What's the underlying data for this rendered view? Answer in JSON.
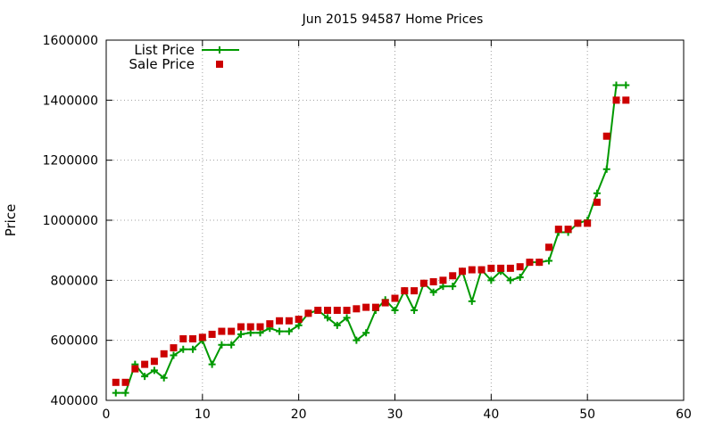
{
  "chart_data": {
    "type": "line",
    "title": "Jun 2015 94587 Home Prices",
    "xlabel": "",
    "ylabel": "Price",
    "xlim": [
      0,
      60
    ],
    "ylim": [
      400000,
      1600000
    ],
    "x_ticks": [
      0,
      10,
      20,
      30,
      40,
      50,
      60
    ],
    "y_ticks": [
      400000,
      600000,
      800000,
      1000000,
      1200000,
      1400000,
      1600000
    ],
    "grid": true,
    "legend_position": "top-left",
    "series": [
      {
        "name": "List Price",
        "style": "line-with-plus-markers",
        "color": "#009900",
        "x": [
          1,
          2,
          3,
          4,
          5,
          6,
          7,
          8,
          9,
          10,
          11,
          12,
          13,
          14,
          15,
          16,
          17,
          18,
          19,
          20,
          21,
          22,
          23,
          24,
          25,
          26,
          27,
          28,
          29,
          30,
          31,
          32,
          33,
          34,
          35,
          36,
          37,
          38,
          39,
          40,
          41,
          42,
          43,
          44,
          45,
          46,
          47,
          48,
          49,
          50,
          51,
          52,
          53,
          54
        ],
        "values": [
          425000,
          425000,
          520000,
          480000,
          500000,
          475000,
          550000,
          570000,
          570000,
          600000,
          520000,
          585000,
          585000,
          620000,
          625000,
          625000,
          640000,
          630000,
          630000,
          650000,
          690000,
          700000,
          675000,
          650000,
          675000,
          600000,
          625000,
          700000,
          735000,
          700000,
          765000,
          700000,
          790000,
          760000,
          780000,
          780000,
          830000,
          730000,
          835000,
          800000,
          830000,
          800000,
          810000,
          860000,
          860000,
          865000,
          960000,
          960000,
          990000,
          1000000,
          1090000,
          1170000,
          1450000,
          1450000
        ]
      },
      {
        "name": "Sale Price",
        "style": "square-markers",
        "color": "#cc0000",
        "x": [
          1,
          2,
          3,
          4,
          5,
          6,
          7,
          8,
          9,
          10,
          11,
          12,
          13,
          14,
          15,
          16,
          17,
          18,
          19,
          20,
          21,
          22,
          23,
          24,
          25,
          26,
          27,
          28,
          29,
          30,
          31,
          32,
          33,
          34,
          35,
          36,
          37,
          38,
          39,
          40,
          41,
          42,
          43,
          44,
          45,
          46,
          47,
          48,
          49,
          50,
          51,
          52,
          53,
          54
        ],
        "values": [
          460000,
          460000,
          505000,
          520000,
          530000,
          555000,
          575000,
          605000,
          605000,
          610000,
          620000,
          630000,
          630000,
          645000,
          645000,
          645000,
          655000,
          665000,
          665000,
          670000,
          690000,
          700000,
          700000,
          700000,
          700000,
          705000,
          710000,
          710000,
          725000,
          740000,
          765000,
          765000,
          790000,
          795000,
          800000,
          815000,
          830000,
          835000,
          835000,
          840000,
          840000,
          840000,
          845000,
          860000,
          860000,
          910000,
          970000,
          970000,
          990000,
          990000,
          1060000,
          1280000,
          1400000,
          1400000
        ]
      }
    ]
  }
}
